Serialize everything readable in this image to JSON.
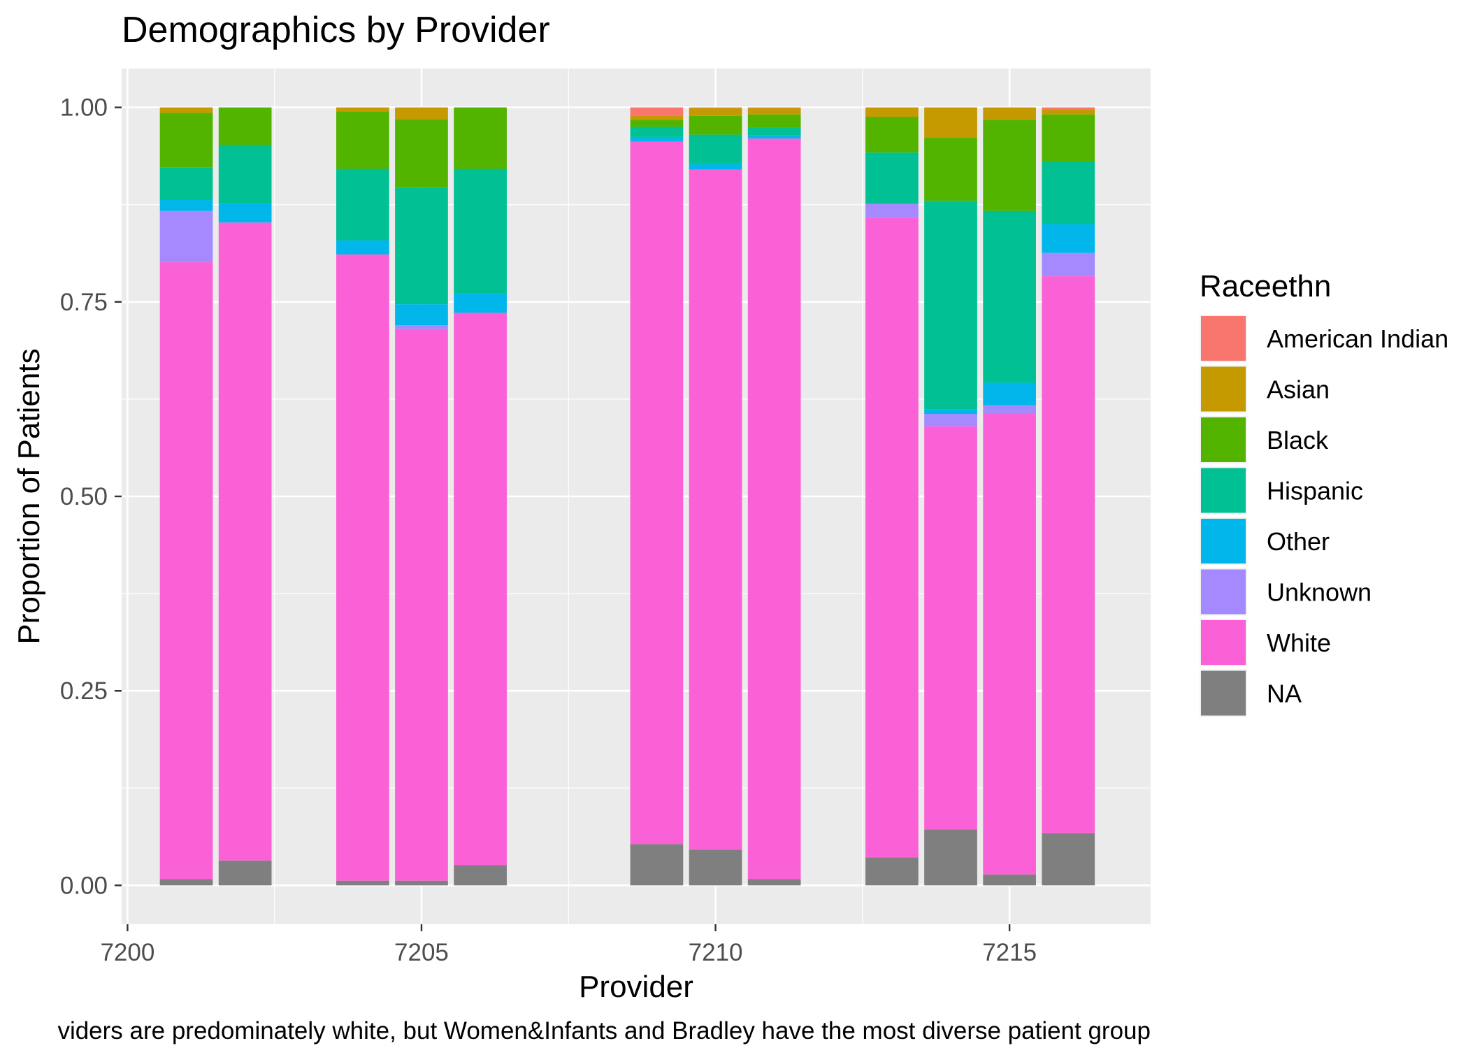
{
  "chart_data": {
    "type": "bar",
    "stacked": true,
    "position": "fill",
    "title": "Demographics by Provider",
    "xlabel": "Provider",
    "ylabel": "Proportion of Patients",
    "caption": "viders are predominately white, but Women&Infants and Bradley have the most diverse patient group",
    "xlim": [
      7199.9,
      7217.4
    ],
    "ylim": [
      -0.05,
      1.05
    ],
    "x_ticks": [
      7200,
      7205,
      7210,
      7215
    ],
    "y_ticks": [
      0.0,
      0.25,
      0.5,
      0.75,
      1.0
    ],
    "y_tick_labels": [
      "0.00",
      "0.25",
      "0.50",
      "0.75",
      "1.00"
    ],
    "bar_width": 0.9,
    "grid": true,
    "legend": {
      "title": "Raceethn",
      "position": "right",
      "entries": [
        "American Indian",
        "Asian",
        "Black",
        "Hispanic",
        "Other",
        "Unknown",
        "White",
        "NA"
      ]
    },
    "colors": {
      "American Indian": "#F8766D",
      "Asian": "#C49A00",
      "Black": "#53B400",
      "Hispanic": "#00C094",
      "Other": "#00B6EB",
      "Unknown": "#A58AFF",
      "White": "#FB61D7",
      "NA": "#7F7F7F"
    },
    "stack_order_bottom_to_top": [
      "NA",
      "White",
      "Unknown",
      "Other",
      "Hispanic",
      "Black",
      "Asian",
      "American Indian"
    ],
    "bars": [
      {
        "x": 7201,
        "values": {
          "NA": 0.008,
          "White": 0.793,
          "Unknown": 0.066,
          "Other": 0.014,
          "Hispanic": 0.042,
          "Black": 0.07,
          "Asian": 0.007,
          "American Indian": 0.0
        }
      },
      {
        "x": 7202,
        "values": {
          "NA": 0.032,
          "White": 0.82,
          "Unknown": 0.0,
          "Other": 0.024,
          "Hispanic": 0.076,
          "Black": 0.048,
          "Asian": 0.0,
          "American Indian": 0.0
        }
      },
      {
        "x": 7204,
        "values": {
          "NA": 0.006,
          "White": 0.805,
          "Unknown": 0.0,
          "Other": 0.018,
          "Hispanic": 0.092,
          "Black": 0.074,
          "Asian": 0.005,
          "American Indian": 0.0
        }
      },
      {
        "x": 7205,
        "values": {
          "NA": 0.006,
          "White": 0.709,
          "Unknown": 0.005,
          "Other": 0.027,
          "Hispanic": 0.15,
          "Black": 0.088,
          "Asian": 0.015,
          "American Indian": 0.0
        }
      },
      {
        "x": 7206,
        "values": {
          "NA": 0.026,
          "White": 0.71,
          "Unknown": 0.0,
          "Other": 0.025,
          "Hispanic": 0.16,
          "Black": 0.079,
          "Asian": 0.0,
          "American Indian": 0.0
        }
      },
      {
        "x": 7209,
        "values": {
          "NA": 0.053,
          "White": 0.903,
          "Unknown": 0.0,
          "Other": 0.006,
          "Hispanic": 0.013,
          "Black": 0.009,
          "Asian": 0.005,
          "American Indian": 0.011
        }
      },
      {
        "x": 7210,
        "values": {
          "NA": 0.046,
          "White": 0.874,
          "Unknown": 0.0,
          "Other": 0.007,
          "Hispanic": 0.038,
          "Black": 0.024,
          "Asian": 0.01,
          "American Indian": 0.001
        }
      },
      {
        "x": 7211,
        "values": {
          "NA": 0.008,
          "White": 0.952,
          "Unknown": 0.0,
          "Other": 0.004,
          "Hispanic": 0.01,
          "Black": 0.017,
          "Asian": 0.008,
          "American Indian": 0.001
        }
      },
      {
        "x": 7213,
        "values": {
          "NA": 0.036,
          "White": 0.822,
          "Unknown": 0.018,
          "Other": 0.0,
          "Hispanic": 0.066,
          "Black": 0.046,
          "Asian": 0.012,
          "American Indian": 0.0
        }
      },
      {
        "x": 7214,
        "values": {
          "NA": 0.072,
          "White": 0.518,
          "Unknown": 0.016,
          "Other": 0.006,
          "Hispanic": 0.268,
          "Black": 0.081,
          "Asian": 0.039,
          "American Indian": 0.0
        }
      },
      {
        "x": 7215,
        "values": {
          "NA": 0.014,
          "White": 0.592,
          "Unknown": 0.011,
          "Other": 0.029,
          "Hispanic": 0.221,
          "Black": 0.117,
          "Asian": 0.016,
          "American Indian": 0.0
        }
      },
      {
        "x": 7216,
        "values": {
          "NA": 0.067,
          "White": 0.716,
          "Unknown": 0.03,
          "Other": 0.037,
          "Hispanic": 0.08,
          "Black": 0.061,
          "Asian": 0.006,
          "American Indian": 0.003
        }
      }
    ]
  }
}
